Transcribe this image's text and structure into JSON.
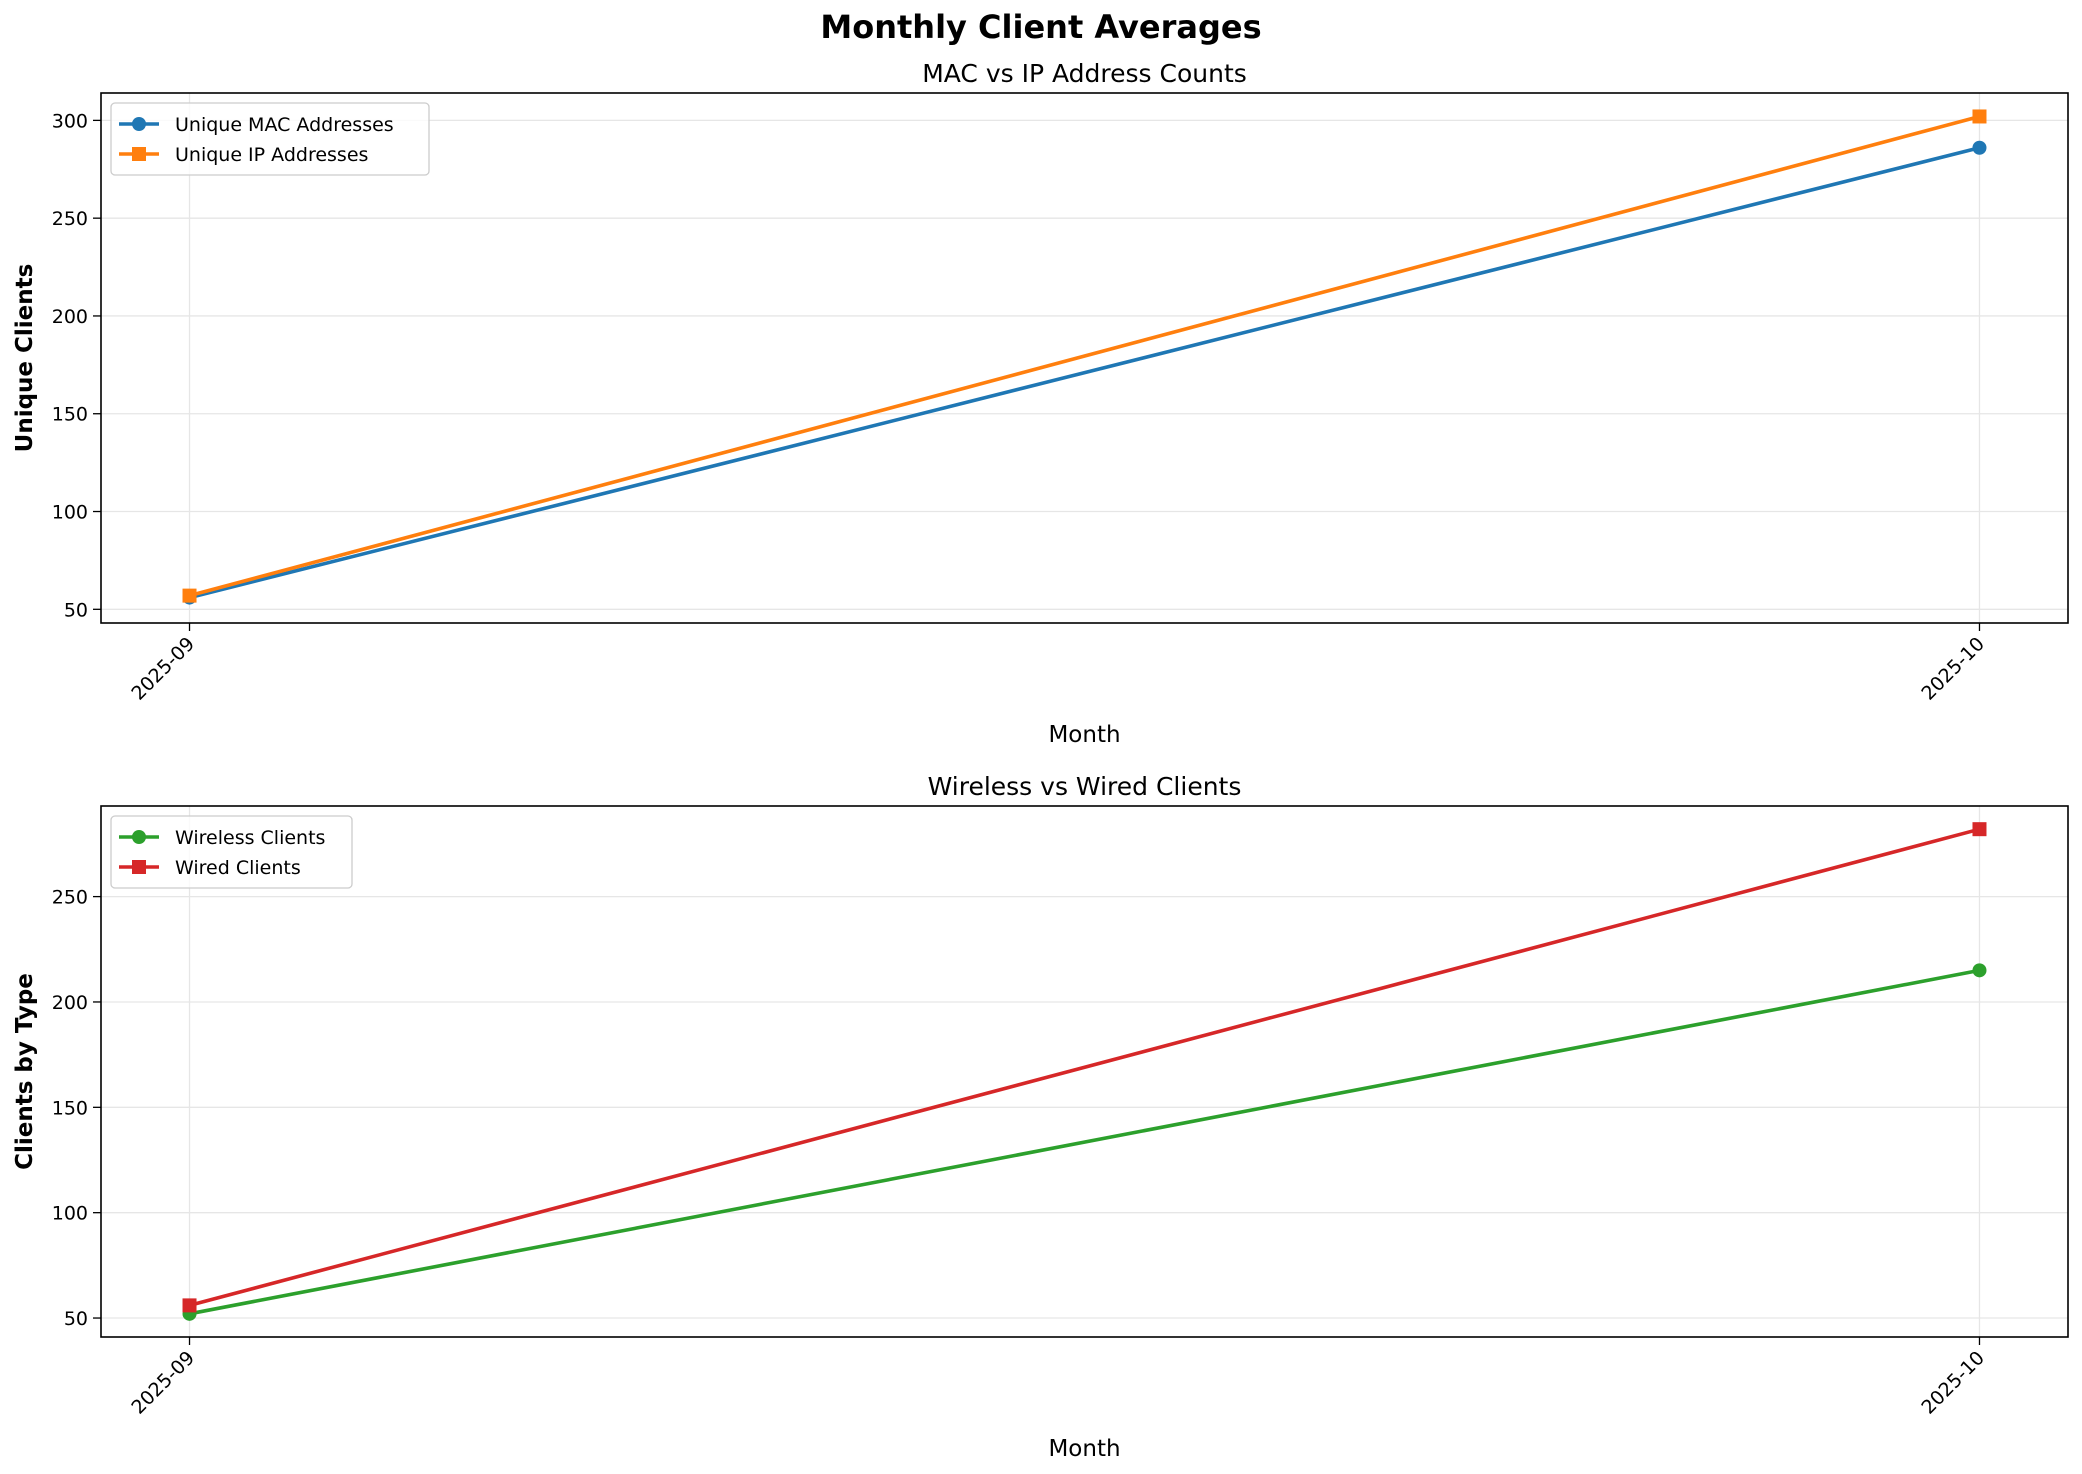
{
  "figure": {
    "suptitle": "Monthly Client Averages"
  },
  "chart_data": [
    {
      "type": "line",
      "title": "MAC vs IP Address Counts",
      "xlabel": "Month",
      "ylabel": "Unique Clients",
      "categories": [
        "2025-09",
        "2025-10"
      ],
      "ylim": [
        43,
        314
      ],
      "yticks": [
        50,
        100,
        150,
        200,
        250,
        300
      ],
      "grid": true,
      "legend": "top-left",
      "series": [
        {
          "name": "Unique MAC Addresses",
          "values": [
            56,
            286
          ],
          "color": "#1f77b4",
          "marker": "circle"
        },
        {
          "name": "Unique IP Addresses",
          "values": [
            57,
            302
          ],
          "color": "#ff7f0e",
          "marker": "square"
        }
      ]
    },
    {
      "type": "line",
      "title": "Wireless vs Wired Clients",
      "xlabel": "Month",
      "ylabel": "Clients by Type",
      "categories": [
        "2025-09",
        "2025-10"
      ],
      "ylim": [
        41,
        293
      ],
      "yticks": [
        50,
        100,
        150,
        200,
        250
      ],
      "grid": true,
      "legend": "top-left",
      "series": [
        {
          "name": "Wireless Clients",
          "values": [
            52,
            215
          ],
          "color": "#2ca02c",
          "marker": "circle"
        },
        {
          "name": "Wired Clients",
          "values": [
            56,
            282
          ],
          "color": "#d62728",
          "marker": "square"
        }
      ]
    }
  ]
}
